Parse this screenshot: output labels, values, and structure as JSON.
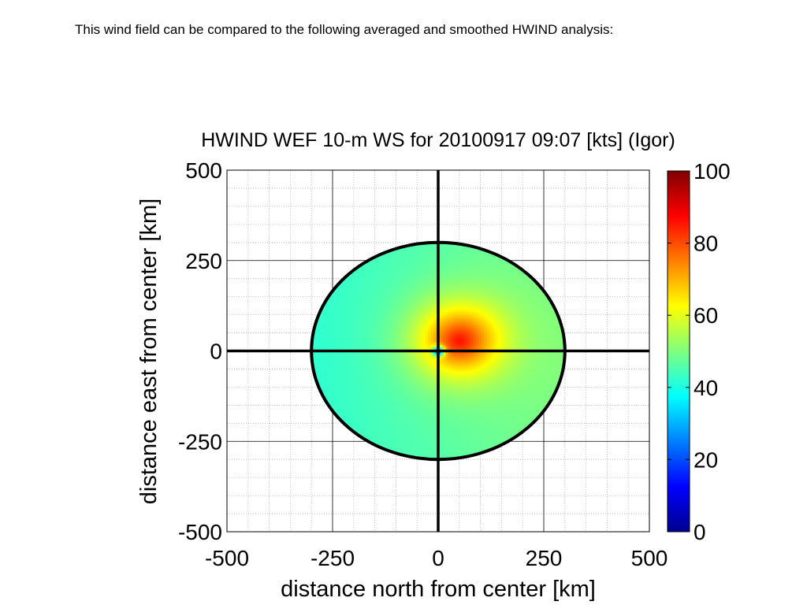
{
  "caption": "This wind field can be compared to the following averaged and smoothed HWIND analysis:",
  "colors": {
    "background": "#ffffff",
    "axis": "#000000",
    "grid": "#b0b0b0"
  },
  "chart_data": {
    "type": "heatmap",
    "title": "HWIND WEF 10-m WS for 20100917 09:07 [kts] (Igor)",
    "xlabel": "distance north from center [km]",
    "ylabel": "distance east from center [km]",
    "xlim": [
      -500,
      500
    ],
    "ylim": [
      -500,
      500
    ],
    "xticks": [
      -500,
      -250,
      0,
      250,
      500
    ],
    "yticks": [
      -500,
      -250,
      0,
      250,
      500
    ],
    "xtick_labels": [
      "-500",
      "-250",
      "0",
      "250",
      "500"
    ],
    "ytick_labels": [
      "-500",
      "-250",
      "0",
      "250",
      "500"
    ],
    "grid": true,
    "colormap": "jet",
    "colorbar": {
      "range": [
        0,
        100
      ],
      "ticks": [
        0,
        20,
        40,
        60,
        80,
        100
      ],
      "tick_labels": [
        "0",
        "20",
        "40",
        "60",
        "80",
        "100"
      ]
    },
    "domain_radius_km": 300,
    "field": {
      "max_wind_kts": 85,
      "max_wind_location_km": [
        50,
        30
      ],
      "eye_center_km": [
        0,
        0
      ],
      "outer_edge_wind_kts": 46
    }
  }
}
